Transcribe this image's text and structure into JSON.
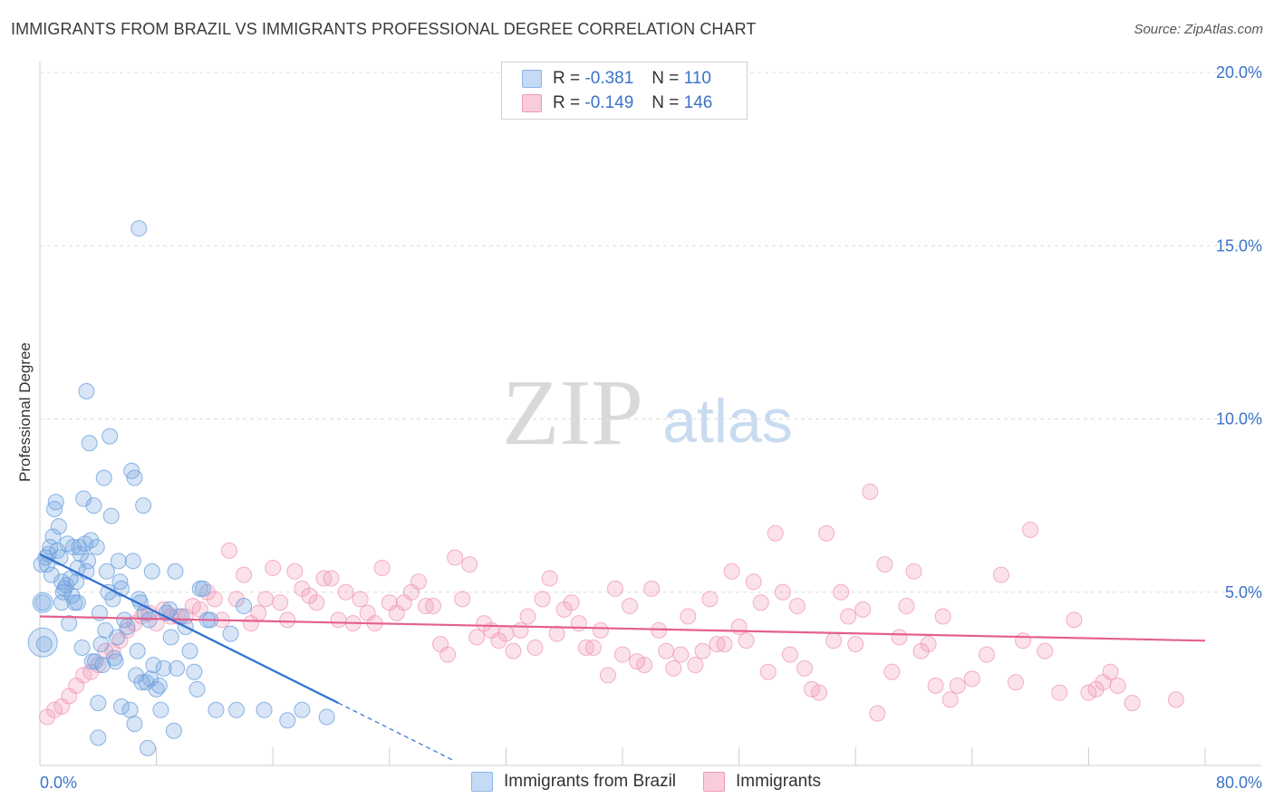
{
  "title": "IMMIGRANTS FROM BRAZIL VS IMMIGRANTS PROFESSIONAL DEGREE CORRELATION CHART",
  "source": "Source: ZipAtlas.com",
  "watermark": {
    "zip": "ZIP",
    "atlas": "atlas"
  },
  "legend": {
    "r_label": "R =",
    "n_label": "N =",
    "rows": [
      {
        "r": "-0.381",
        "n": "110",
        "color": "#8ab4e8",
        "fill": "#c5dbf5"
      },
      {
        "r": "-0.149",
        "n": "146",
        "color": "#eb9ab5",
        "fill": "#f8cdd9"
      }
    ]
  },
  "colors": {
    "blue_point": "#6fa3e0",
    "blue_line": "#2f6fcf",
    "pink_point": "#ef97b5",
    "pink_line": "#e5608c",
    "axis_text": "#3b73c8"
  },
  "chart_data": {
    "type": "scatter",
    "title": "IMMIGRANTS FROM BRAZIL VS IMMIGRANTS PROFESSIONAL DEGREE CORRELATION CHART",
    "xlabel": "",
    "ylabel": "Professional Degree",
    "xlim": [
      0,
      80
    ],
    "ylim": [
      0,
      20
    ],
    "x_tick_labels": [
      "0.0%",
      "80.0%"
    ],
    "y_ticks": [
      5,
      10,
      15,
      20
    ],
    "y_tick_labels": [
      "5.0%",
      "10.0%",
      "15.0%",
      "20.0%"
    ],
    "series": [
      {
        "name": "Immigrants from Brazil",
        "R": -0.381,
        "N": 110,
        "trend": {
          "x0": 0,
          "y0": 6.1,
          "x1": 20.5,
          "y1": 1.8,
          "dash_to_x": 28.5
        },
        "points": [
          [
            0.2,
            4.7
          ],
          [
            0.3,
            3.5
          ],
          [
            0.4,
            6.0
          ],
          [
            0.5,
            5.8
          ],
          [
            0.6,
            6.1
          ],
          [
            0.8,
            5.5
          ],
          [
            0.9,
            6.6
          ],
          [
            1.0,
            7.4
          ],
          [
            1.1,
            7.6
          ],
          [
            1.2,
            6.2
          ],
          [
            1.3,
            6.9
          ],
          [
            1.4,
            6.0
          ],
          [
            1.5,
            5.3
          ],
          [
            1.5,
            4.7
          ],
          [
            1.6,
            5.0
          ],
          [
            1.8,
            5.2
          ],
          [
            1.9,
            6.4
          ],
          [
            2.0,
            4.1
          ],
          [
            2.1,
            5.4
          ],
          [
            2.2,
            4.9
          ],
          [
            2.3,
            6.3
          ],
          [
            2.4,
            4.7
          ],
          [
            2.5,
            5.3
          ],
          [
            2.6,
            5.7
          ],
          [
            2.7,
            6.3
          ],
          [
            2.8,
            6.1
          ],
          [
            2.9,
            3.4
          ],
          [
            3.0,
            7.7
          ],
          [
            3.1,
            6.4
          ],
          [
            3.2,
            5.6
          ],
          [
            3.2,
            10.8
          ],
          [
            3.3,
            5.9
          ],
          [
            3.4,
            9.3
          ],
          [
            3.5,
            6.5
          ],
          [
            3.6,
            3.0
          ],
          [
            3.7,
            7.5
          ],
          [
            3.8,
            3.0
          ],
          [
            3.9,
            6.3
          ],
          [
            4.0,
            1.8
          ],
          [
            4.0,
            0.8
          ],
          [
            4.1,
            4.4
          ],
          [
            4.2,
            3.5
          ],
          [
            4.3,
            2.9
          ],
          [
            4.4,
            8.3
          ],
          [
            4.5,
            3.9
          ],
          [
            4.6,
            5.6
          ],
          [
            4.7,
            5.0
          ],
          [
            4.8,
            9.5
          ],
          [
            4.9,
            7.2
          ],
          [
            5.0,
            4.8
          ],
          [
            5.1,
            3.1
          ],
          [
            5.2,
            3.0
          ],
          [
            5.3,
            3.7
          ],
          [
            5.4,
            5.9
          ],
          [
            5.5,
            5.3
          ],
          [
            5.6,
            5.1
          ],
          [
            5.6,
            1.7
          ],
          [
            5.8,
            4.2
          ],
          [
            6.0,
            4.0
          ],
          [
            6.2,
            1.6
          ],
          [
            6.3,
            8.5
          ],
          [
            6.4,
            5.9
          ],
          [
            6.5,
            8.3
          ],
          [
            6.5,
            1.2
          ],
          [
            6.6,
            2.6
          ],
          [
            6.7,
            3.3
          ],
          [
            6.8,
            4.8
          ],
          [
            6.9,
            4.7
          ],
          [
            7.0,
            2.4
          ],
          [
            7.1,
            7.5
          ],
          [
            7.2,
            4.4
          ],
          [
            7.3,
            2.4
          ],
          [
            7.4,
            0.5
          ],
          [
            7.5,
            4.2
          ],
          [
            7.6,
            2.5
          ],
          [
            7.7,
            5.6
          ],
          [
            7.8,
            2.9
          ],
          [
            8.0,
            2.2
          ],
          [
            8.2,
            2.3
          ],
          [
            8.3,
            1.6
          ],
          [
            8.5,
            2.8
          ],
          [
            8.7,
            4.4
          ],
          [
            8.9,
            4.5
          ],
          [
            9.0,
            3.7
          ],
          [
            9.2,
            1.0
          ],
          [
            9.3,
            5.6
          ],
          [
            9.4,
            2.8
          ],
          [
            9.7,
            4.3
          ],
          [
            10.0,
            4.0
          ],
          [
            10.3,
            3.3
          ],
          [
            10.6,
            2.7
          ],
          [
            10.8,
            2.2
          ],
          [
            11.0,
            5.1
          ],
          [
            11.2,
            5.1
          ],
          [
            11.5,
            4.2
          ],
          [
            11.7,
            4.2
          ],
          [
            12.1,
            1.6
          ],
          [
            13.1,
            3.8
          ],
          [
            13.5,
            1.6
          ],
          [
            14.0,
            4.6
          ],
          [
            15.4,
            1.6
          ],
          [
            17.0,
            1.3
          ],
          [
            18.0,
            1.6
          ],
          [
            19.7,
            1.4
          ],
          [
            6.8,
            15.5
          ],
          [
            0.1,
            5.8
          ],
          [
            0.7,
            6.3
          ],
          [
            1.7,
            5.1
          ],
          [
            2.6,
            4.7
          ]
        ],
        "color": "#6fa3e0"
      },
      {
        "name": "Immigrants",
        "R": -0.149,
        "N": 146,
        "trend": {
          "x0": 0,
          "y0": 4.3,
          "x1": 80,
          "y1": 3.6
        },
        "points": [
          [
            0.5,
            1.4
          ],
          [
            1.0,
            1.6
          ],
          [
            1.5,
            1.7
          ],
          [
            2.0,
            2.0
          ],
          [
            2.5,
            2.3
          ],
          [
            3.0,
            2.6
          ],
          [
            3.5,
            2.7
          ],
          [
            4.0,
            2.9
          ],
          [
            4.5,
            3.3
          ],
          [
            5.0,
            3.3
          ],
          [
            5.5,
            3.6
          ],
          [
            6.0,
            3.9
          ],
          [
            6.5,
            4.1
          ],
          [
            7.0,
            4.3
          ],
          [
            7.5,
            4.4
          ],
          [
            8.0,
            4.1
          ],
          [
            8.5,
            4.5
          ],
          [
            9.0,
            4.3
          ],
          [
            9.5,
            4.3
          ],
          [
            10.0,
            4.3
          ],
          [
            10.5,
            4.6
          ],
          [
            11.0,
            4.5
          ],
          [
            11.5,
            5.0
          ],
          [
            12.0,
            4.8
          ],
          [
            12.5,
            4.2
          ],
          [
            13.0,
            6.2
          ],
          [
            13.5,
            4.8
          ],
          [
            14.0,
            5.5
          ],
          [
            14.5,
            4.1
          ],
          [
            15.0,
            4.4
          ],
          [
            15.5,
            4.8
          ],
          [
            16.0,
            5.7
          ],
          [
            16.5,
            4.7
          ],
          [
            17.0,
            4.2
          ],
          [
            17.5,
            5.6
          ],
          [
            18.0,
            5.1
          ],
          [
            18.5,
            4.9
          ],
          [
            19.0,
            4.7
          ],
          [
            19.5,
            5.4
          ],
          [
            20.0,
            5.4
          ],
          [
            20.5,
            4.2
          ],
          [
            21.0,
            5.0
          ],
          [
            21.5,
            4.1
          ],
          [
            22.0,
            4.8
          ],
          [
            22.5,
            4.4
          ],
          [
            23.0,
            4.1
          ],
          [
            23.5,
            5.7
          ],
          [
            24.0,
            4.7
          ],
          [
            24.5,
            4.4
          ],
          [
            25.0,
            4.7
          ],
          [
            25.5,
            5.0
          ],
          [
            26.0,
            5.3
          ],
          [
            26.5,
            4.6
          ],
          [
            27.0,
            4.6
          ],
          [
            27.5,
            3.5
          ],
          [
            28.0,
            3.2
          ],
          [
            28.5,
            6.0
          ],
          [
            29.0,
            4.8
          ],
          [
            29.5,
            5.8
          ],
          [
            30.0,
            3.7
          ],
          [
            30.5,
            4.1
          ],
          [
            31.0,
            3.9
          ],
          [
            31.5,
            3.6
          ],
          [
            32.0,
            3.8
          ],
          [
            32.5,
            3.3
          ],
          [
            33.0,
            3.9
          ],
          [
            33.5,
            4.3
          ],
          [
            34.0,
            3.4
          ],
          [
            34.5,
            4.8
          ],
          [
            35.0,
            5.4
          ],
          [
            35.5,
            3.8
          ],
          [
            36.0,
            4.5
          ],
          [
            36.5,
            4.7
          ],
          [
            37.0,
            4.1
          ],
          [
            37.5,
            3.4
          ],
          [
            38.0,
            3.4
          ],
          [
            38.5,
            3.9
          ],
          [
            39.0,
            2.6
          ],
          [
            39.5,
            5.1
          ],
          [
            40.0,
            3.2
          ],
          [
            40.5,
            4.6
          ],
          [
            41.0,
            3.0
          ],
          [
            41.5,
            2.9
          ],
          [
            42.0,
            5.1
          ],
          [
            42.5,
            3.9
          ],
          [
            43.0,
            3.3
          ],
          [
            43.5,
            2.8
          ],
          [
            44.0,
            3.2
          ],
          [
            44.5,
            4.3
          ],
          [
            45.0,
            2.9
          ],
          [
            45.5,
            3.3
          ],
          [
            46.0,
            4.8
          ],
          [
            46.5,
            3.5
          ],
          [
            47.0,
            3.5
          ],
          [
            47.5,
            5.6
          ],
          [
            48.0,
            4.0
          ],
          [
            48.5,
            3.6
          ],
          [
            49.0,
            5.3
          ],
          [
            49.5,
            4.7
          ],
          [
            50.0,
            2.7
          ],
          [
            50.5,
            6.7
          ],
          [
            51.0,
            5.0
          ],
          [
            51.5,
            3.2
          ],
          [
            52.0,
            4.6
          ],
          [
            52.5,
            2.8
          ],
          [
            53.0,
            2.2
          ],
          [
            53.5,
            2.1
          ],
          [
            54.0,
            6.7
          ],
          [
            54.5,
            3.6
          ],
          [
            55.0,
            5.0
          ],
          [
            55.5,
            4.3
          ],
          [
            56.0,
            3.5
          ],
          [
            56.5,
            4.5
          ],
          [
            57.0,
            7.9
          ],
          [
            57.5,
            1.5
          ],
          [
            58.0,
            5.8
          ],
          [
            58.5,
            2.7
          ],
          [
            59.0,
            3.7
          ],
          [
            59.5,
            4.6
          ],
          [
            60.0,
            5.6
          ],
          [
            60.5,
            3.3
          ],
          [
            61.0,
            3.5
          ],
          [
            61.5,
            2.3
          ],
          [
            62.0,
            4.3
          ],
          [
            62.5,
            1.9
          ],
          [
            63.0,
            2.3
          ],
          [
            64.0,
            2.5
          ],
          [
            65.0,
            3.2
          ],
          [
            66.0,
            5.5
          ],
          [
            67.0,
            2.4
          ],
          [
            67.5,
            3.6
          ],
          [
            68.0,
            6.8
          ],
          [
            69.0,
            3.3
          ],
          [
            70.0,
            2.1
          ],
          [
            71.0,
            4.2
          ],
          [
            72.0,
            2.1
          ],
          [
            72.5,
            2.2
          ],
          [
            73.0,
            2.4
          ],
          [
            73.5,
            2.7
          ],
          [
            74.0,
            2.3
          ],
          [
            75.0,
            1.8
          ],
          [
            78.0,
            1.9
          ]
        ],
        "color": "#ef97b5"
      }
    ]
  },
  "bottom_legend": [
    {
      "label": "Immigrants from Brazil",
      "color": "#8ab4e8",
      "fill": "#c5dbf5"
    },
    {
      "label": "Immigrants",
      "color": "#eb9ab5",
      "fill": "#f8cdd9"
    }
  ]
}
